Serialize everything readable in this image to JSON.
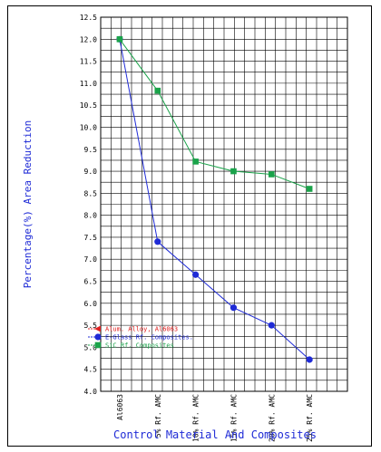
{
  "chart_data": {
    "type": "line",
    "xlabel": "Control Material And Composites",
    "ylabel": "Percentage(%) Area Reduction",
    "ylim": [
      4.0,
      12.5
    ],
    "y_ticks": [
      "4.0",
      "4.5",
      "5.0",
      "5.5",
      "6.0",
      "6.5",
      "7.0",
      "7.5",
      "8.0",
      "8.5",
      "9.0",
      "9.5",
      "10.0",
      "10.5",
      "11.0",
      "11.5",
      "12.0",
      "12.5"
    ],
    "categories": [
      "Al6063",
      "5% Rf. AMC",
      "10% Rf. AMC",
      "15% Rf. AMC",
      "20% Rf. AMC",
      "25% Rf. AMC"
    ],
    "grid": true,
    "legend_position": "bottom-left",
    "series": [
      {
        "name": "Alum. Alloy, Al6063",
        "color": "#e02020",
        "marker": "triangle",
        "values": [
          12.0,
          null,
          null,
          null,
          null,
          null
        ]
      },
      {
        "name": "E-Glass Rf. Composites.",
        "color": "#1f2bd6",
        "marker": "circle",
        "values": [
          12.0,
          7.4,
          6.65,
          5.9,
          5.5,
          4.72
        ]
      },
      {
        "name": "SiC Rf. Composites",
        "color": "#1aa34a",
        "marker": "square",
        "values": [
          12.0,
          10.83,
          9.22,
          9.0,
          8.93,
          8.6
        ]
      }
    ]
  }
}
